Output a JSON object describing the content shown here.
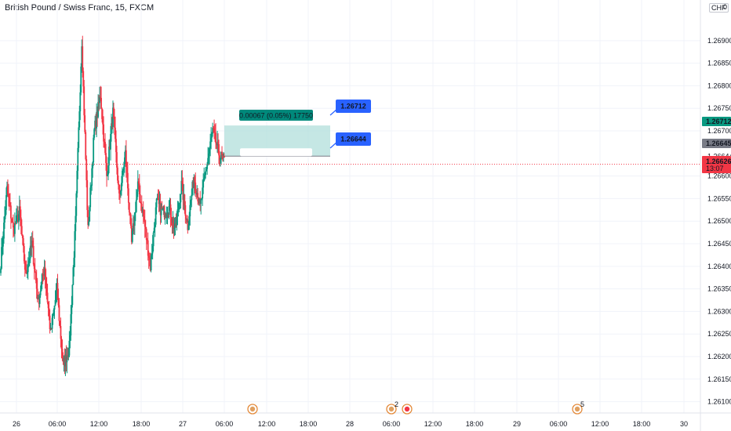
{
  "header": {
    "title": "British Pound / Swiss Franc, 15, FXCM",
    "currency_badge": "CHF",
    "currency_suffix": "0"
  },
  "chart_data": {
    "type": "candlestick",
    "symbol": "British Pound / Swiss Franc",
    "interval": "15",
    "exchange": "FXCM",
    "ylim": [
      1.26075,
      1.2699
    ],
    "y_ticks": [
      "1.26900",
      "1.26850",
      "1.26800",
      "1.26750",
      "1.26700",
      "1.26644",
      "1.26600",
      "1.26550",
      "1.26500",
      "1.26450",
      "1.26400",
      "1.26350",
      "1.26300",
      "1.26250",
      "1.26200",
      "1.26150",
      "1.26100"
    ],
    "x_ticks": [
      "26",
      "06:00",
      "12:00",
      "18:00",
      "27",
      "06:00",
      "12:00",
      "18:00",
      "28",
      "06:00",
      "12:00",
      "18:00",
      "29",
      "06:00",
      "12:00",
      "18:00",
      "30"
    ],
    "close_path": [
      1.2641,
      1.2657,
      1.2648,
      1.2652,
      1.2638,
      1.2645,
      1.2632,
      1.264,
      1.2625,
      1.2635,
      1.2618,
      1.2622,
      1.265,
      1.269,
      1.2648,
      1.267,
      1.2678,
      1.266,
      1.2674,
      1.2655,
      1.2665,
      1.2645,
      1.2658,
      1.265,
      1.264,
      1.2654,
      1.2652,
      1.2653,
      1.2648,
      1.2658,
      1.2649,
      1.266,
      1.2653,
      1.2662,
      1.267,
      1.2665,
      1.2663
    ],
    "price_labels": [
      {
        "value": "1.26712",
        "color": "#089981"
      },
      {
        "value": "1.26645",
        "color": "#787b86"
      },
      {
        "value": "1.26626",
        "color": "#f23645",
        "sub": "13:07"
      }
    ],
    "position_tool": {
      "label": "0.00067 (0.05%) 17750",
      "target_price": "1.26712",
      "entry_price": "1.26644",
      "fill_color": "#b2dfdb",
      "label_color": "#00897b",
      "callout_color": "#2962ff"
    },
    "events": [
      {
        "x_label": "09:00",
        "badge": ""
      },
      {
        "x_label": "06:00",
        "badge": "2"
      },
      {
        "x_label": "07:00",
        "badge": ""
      },
      {
        "x_label": "06:00",
        "badge": "5"
      }
    ],
    "colors": {
      "up": "#089981",
      "down": "#f23645",
      "grid": "#f0f3fa",
      "axis_text": "#131722"
    }
  }
}
